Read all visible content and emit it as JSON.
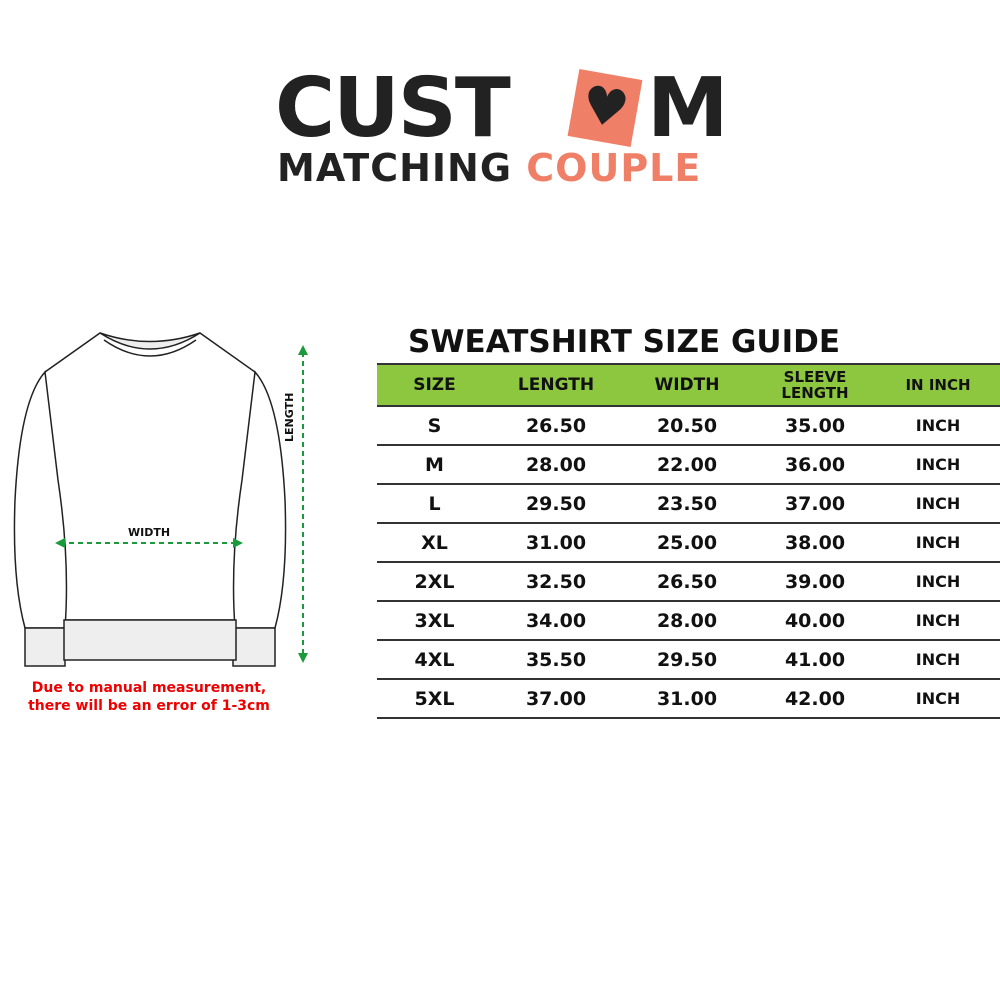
{
  "logo": {
    "line1_a": "CUST",
    "heart": "♥",
    "line1_b": "M",
    "line2_a": "MATCHING",
    "line2_b": "COUPLE",
    "accent": "#f07f68",
    "dark": "#222222"
  },
  "diagram": {
    "length_label": "LENGTH",
    "width_label": "WIDTH",
    "arrow_color": "#1a9a3a"
  },
  "note": {
    "line1": "Due to manual measurement,",
    "line2": "there will be an error of 1-3cm",
    "color": "#e00000"
  },
  "guide": {
    "title": "SWEATSHIRT SIZE GUIDE",
    "header_color": "#8dc63f",
    "headers": [
      "SIZE",
      "LENGTH",
      "WIDTH",
      "SLEEVE LENGTH",
      "IN INCH"
    ],
    "rows": [
      [
        "S",
        "26.50",
        "20.50",
        "35.00",
        "INCH"
      ],
      [
        "M",
        "28.00",
        "22.00",
        "36.00",
        "INCH"
      ],
      [
        "L",
        "29.50",
        "23.50",
        "37.00",
        "INCH"
      ],
      [
        "XL",
        "31.00",
        "25.00",
        "38.00",
        "INCH"
      ],
      [
        "2XL",
        "32.50",
        "26.50",
        "39.00",
        "INCH"
      ],
      [
        "3XL",
        "34.00",
        "28.00",
        "40.00",
        "INCH"
      ],
      [
        "4XL",
        "35.50",
        "29.50",
        "41.00",
        "INCH"
      ],
      [
        "5XL",
        "37.00",
        "31.00",
        "42.00",
        "INCH"
      ]
    ]
  }
}
